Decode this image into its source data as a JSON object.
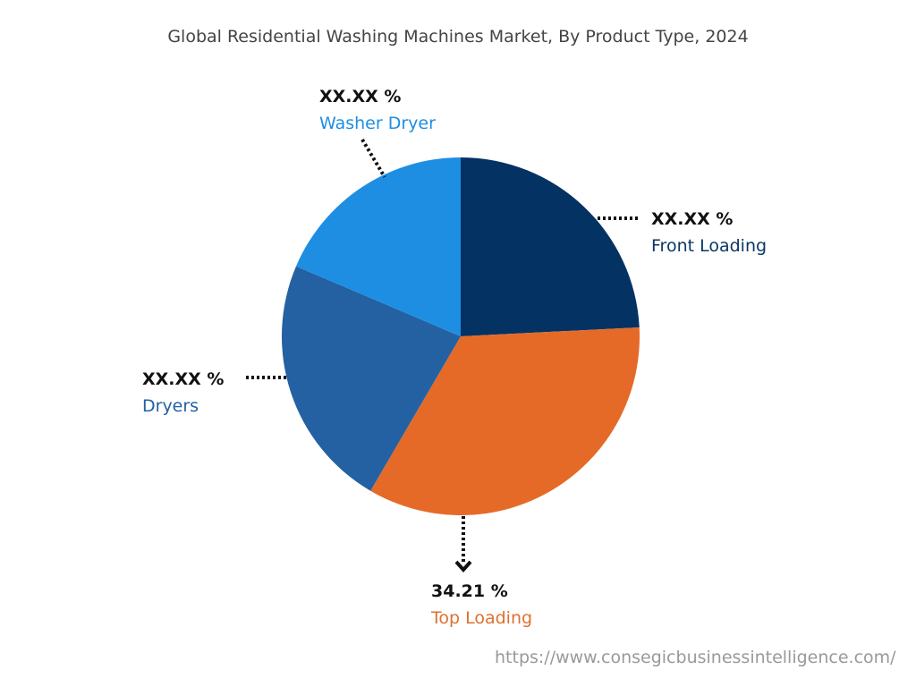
{
  "chart_data": {
    "type": "pie",
    "title": "Global Residential Washing Machines Market, By Product Type, 2024",
    "start_angle_deg": 0,
    "direction": "clockwise",
    "slices": [
      {
        "name": "Front Loading",
        "value": 24.2,
        "label": "XX.XX %",
        "color": "#033263",
        "text_color": "#0a3766"
      },
      {
        "name": "Top Loading",
        "value": 34.21,
        "label": "34.21 %",
        "color": "#e56a28",
        "text_color": "#e07030"
      },
      {
        "name": "Dryers",
        "value": 23.0,
        "label": "XX.XX %",
        "color": "#2361a2",
        "text_color": "#2361a2"
      },
      {
        "name": "Washer Dryer",
        "value": 18.59,
        "label": "XX.XX %",
        "color": "#1e8ee3",
        "text_color": "#1e8ee3"
      }
    ]
  },
  "source": "https://www.consegicbusinessintelligence.com/"
}
